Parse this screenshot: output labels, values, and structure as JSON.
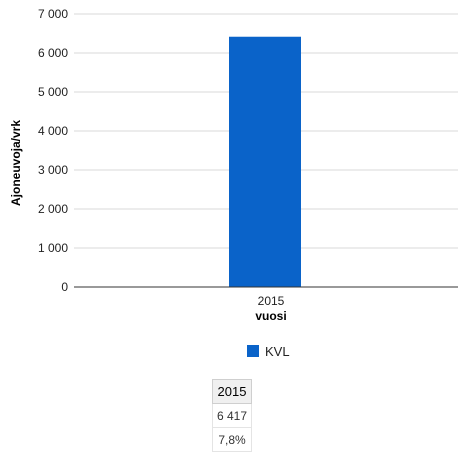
{
  "chart_data": {
    "type": "bar",
    "categories": [
      "2015"
    ],
    "series": [
      {
        "name": "KVL",
        "values": [
          6417
        ]
      }
    ],
    "xlabel": "vuosi",
    "ylabel": "Ajoneuvoja/vrk",
    "ylim": [
      0,
      7000
    ],
    "yticks": [
      "0",
      "1 000",
      "2 000",
      "3 000",
      "4 000",
      "5 000",
      "6 000",
      "7 000"
    ],
    "grid": true,
    "legend_position": "bottom",
    "colors": {
      "KVL": "#0a63c9"
    }
  },
  "table": {
    "header": "2015",
    "rows": [
      "6 417",
      "7,8%"
    ]
  }
}
